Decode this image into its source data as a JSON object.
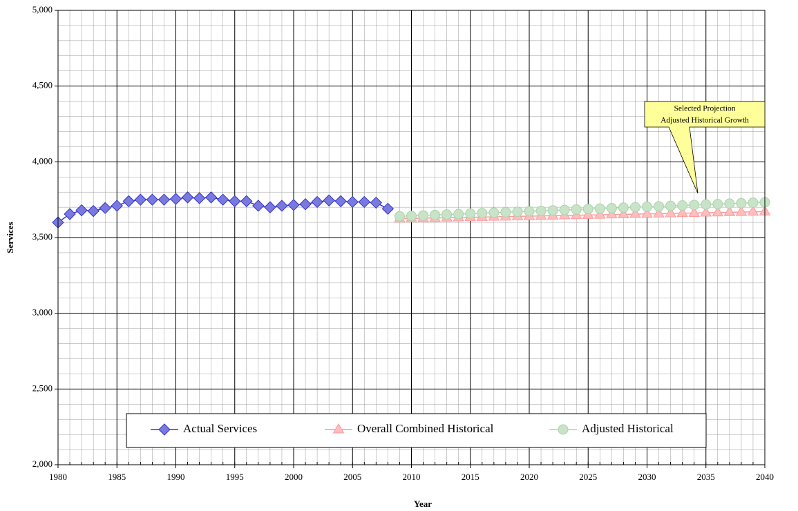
{
  "chart_data": {
    "type": "line",
    "x_label": "Year",
    "y_label": "Services",
    "x": [
      1980,
      1981,
      1982,
      1983,
      1984,
      1985,
      1986,
      1987,
      1988,
      1989,
      1990,
      1991,
      1992,
      1993,
      1994,
      1995,
      1996,
      1997,
      1998,
      1999,
      2000,
      2001,
      2002,
      2003,
      2004,
      2005,
      2006,
      2007,
      2008,
      2009,
      2010,
      2011,
      2012,
      2013,
      2014,
      2015,
      2016,
      2017,
      2018,
      2019,
      2020,
      2021,
      2022,
      2023,
      2024,
      2025,
      2026,
      2027,
      2028,
      2029,
      2030,
      2031,
      2032,
      2033,
      2034,
      2035,
      2036,
      2037,
      2038,
      2039,
      2040
    ],
    "xlim": [
      1980,
      2040
    ],
    "xticks": [
      1980,
      1985,
      1990,
      1995,
      2000,
      2005,
      2010,
      2015,
      2020,
      2025,
      2030,
      2035,
      2040
    ],
    "ylim": [
      2000,
      5000
    ],
    "yticks": [
      {
        "value": 2000,
        "label": "2,000"
      },
      {
        "value": 2500,
        "label": "2,500"
      },
      {
        "value": 3000,
        "label": "3,000"
      },
      {
        "value": 3500,
        "label": "3,500"
      },
      {
        "value": 4000,
        "label": "4,000"
      },
      {
        "value": 4500,
        "label": "4,500"
      },
      {
        "value": 5000,
        "label": "5,000"
      }
    ],
    "y_minor_grid": [
      2100,
      2200,
      2300,
      2400,
      2600,
      2700,
      2800,
      2900,
      3100,
      3200,
      3300,
      3400,
      3600,
      3700,
      3800,
      3900,
      4100,
      4200,
      4300,
      4400,
      4600,
      4700,
      4800,
      4900
    ],
    "grid": true,
    "legend": "bottom",
    "series": [
      {
        "name": "Actual Services",
        "color": "#3333cc",
        "marker": "diamond",
        "values": [
          3600,
          3655,
          3680,
          3675,
          3695,
          3710,
          3740,
          3750,
          3750,
          3750,
          3755,
          3765,
          3760,
          3765,
          3750,
          3740,
          3740,
          3710,
          3700,
          3710,
          3715,
          3720,
          3735,
          3745,
          3740,
          3735,
          3735,
          3730,
          3690,
          null,
          null,
          null,
          null,
          null,
          null,
          null,
          null,
          null,
          null,
          null,
          null,
          null,
          null,
          null,
          null,
          null,
          null,
          null,
          null,
          null,
          null,
          null,
          null,
          null,
          null,
          null,
          null,
          null,
          null,
          null,
          null
        ]
      },
      {
        "name": "Overall Combined Historical",
        "color": "#ff9999",
        "marker": "triangle",
        "values": [
          null,
          null,
          null,
          null,
          null,
          null,
          null,
          null,
          null,
          null,
          null,
          null,
          null,
          null,
          null,
          null,
          null,
          null,
          null,
          null,
          null,
          null,
          null,
          null,
          null,
          null,
          null,
          null,
          null,
          3625,
          3626,
          3628,
          3629,
          3631,
          3632,
          3634,
          3635,
          3637,
          3638,
          3640,
          3641,
          3643,
          3644,
          3646,
          3647,
          3649,
          3650,
          3652,
          3653,
          3655,
          3656,
          3658,
          3659,
          3661,
          3662,
          3664,
          3665,
          3667,
          3668,
          3670,
          3671
        ]
      },
      {
        "name": "Adjusted Historical",
        "color": "#aad4aa",
        "marker": "circle",
        "values": [
          null,
          null,
          null,
          null,
          null,
          null,
          null,
          null,
          null,
          null,
          null,
          null,
          null,
          null,
          null,
          null,
          null,
          null,
          null,
          null,
          null,
          null,
          null,
          null,
          null,
          null,
          null,
          null,
          null,
          3640,
          3643,
          3646,
          3649,
          3652,
          3655,
          3658,
          3661,
          3664,
          3667,
          3670,
          3673,
          3676,
          3679,
          3682,
          3685,
          3688,
          3691,
          3694,
          3697,
          3700,
          3703,
          3706,
          3709,
          3712,
          3715,
          3718,
          3721,
          3724,
          3727,
          3730,
          3733
        ]
      }
    ],
    "annotation": {
      "lines": [
        "Selected Projection",
        "Adjusted Historical Growth"
      ],
      "x": 2033
    }
  }
}
